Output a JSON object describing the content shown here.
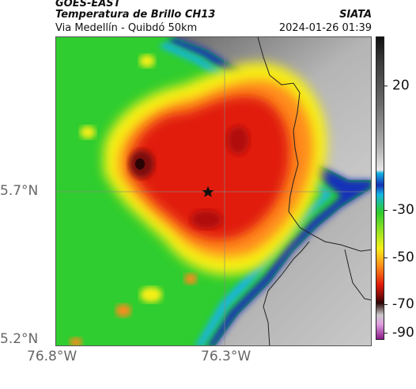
{
  "header": {
    "satellite": "GOES-EAST",
    "product": "Temperatura de Brillo CH13",
    "subtitle": "Via Medellín - Quibdó 50km",
    "source": "SIATA",
    "timestamp": "2024-01-26 01:39"
  },
  "axes": {
    "lat_labels": [
      "5.7°N",
      "5.2°N"
    ],
    "lon_labels": [
      "76.8°W",
      "76.3°W"
    ]
  },
  "colorbar": {
    "tick_labels": [
      "20",
      "-30",
      "-50",
      "-70",
      "-90"
    ],
    "unit_hint": "brightness temperature (°C)"
  },
  "marker": {
    "icon": "star-marker-icon"
  },
  "colors": {
    "cold_core": "#7a0a0a",
    "deep_convection": "#e11b0c",
    "orange": "#ff8a1a",
    "yellow": "#f7ef19",
    "green": "#2fcd2f",
    "cyan": "#14b4e4",
    "blue": "#1631b8",
    "clear_gray": "#a8a8a8"
  }
}
